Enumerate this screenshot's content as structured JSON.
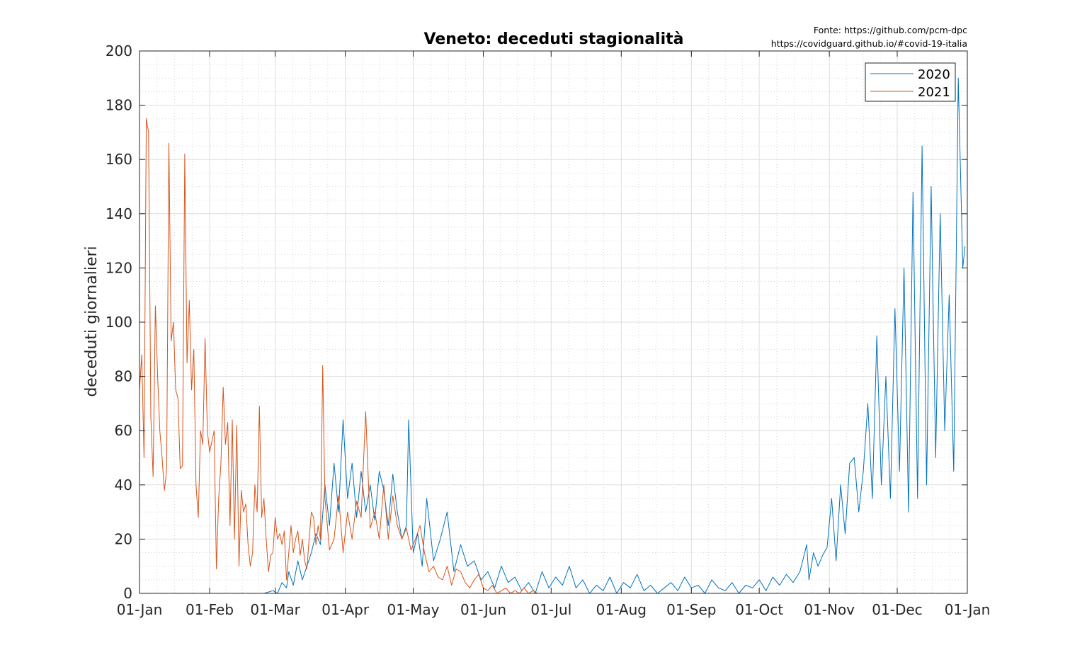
{
  "source": {
    "line1": "Fonte: https://github.com/pcm-dpc",
    "line2": "https://covidguard.github.io/#covid-19-italia"
  },
  "chart_data": {
    "type": "line",
    "title": "Veneto: deceduti stagionalità",
    "xlabel": "",
    "ylabel": "deceduti giornalieri",
    "ylim": [
      0,
      200
    ],
    "xlim_days": [
      0,
      366
    ],
    "grid": true,
    "minor_grid": true,
    "legend_position": "top-right",
    "x_ticks": [
      {
        "day": 0,
        "label": "01-Jan"
      },
      {
        "day": 31,
        "label": "01-Feb"
      },
      {
        "day": 60,
        "label": "01-Mar"
      },
      {
        "day": 91,
        "label": "01-Apr"
      },
      {
        "day": 121,
        "label": "01-May"
      },
      {
        "day": 152,
        "label": "01-Jun"
      },
      {
        "day": 182,
        "label": "01-Jul"
      },
      {
        "day": 213,
        "label": "01-Aug"
      },
      {
        "day": 244,
        "label": "01-Sep"
      },
      {
        "day": 274,
        "label": "01-Oct"
      },
      {
        "day": 305,
        "label": "01-Nov"
      },
      {
        "day": 335,
        "label": "01-Dec"
      },
      {
        "day": 366,
        "label": "01-Jan"
      }
    ],
    "y_ticks": [
      {
        "value": 0,
        "label": "0"
      },
      {
        "value": 20,
        "label": "20"
      },
      {
        "value": 40,
        "label": "40"
      },
      {
        "value": 60,
        "label": "60"
      },
      {
        "value": 80,
        "label": "80"
      },
      {
        "value": 100,
        "label": "100"
      },
      {
        "value": 120,
        "label": "120"
      },
      {
        "value": 140,
        "label": "140"
      },
      {
        "value": 160,
        "label": "160"
      },
      {
        "value": 180,
        "label": "180"
      },
      {
        "value": 200,
        "label": "200"
      }
    ],
    "series": [
      {
        "name": "2020",
        "color": "#0072BD",
        "x": [
          55,
          59,
          61,
          63,
          65,
          66,
          68,
          70,
          72,
          74,
          76,
          78,
          80,
          82,
          84,
          86,
          88,
          90,
          92,
          94,
          96,
          98,
          100,
          102,
          104,
          106,
          108,
          110,
          112,
          114,
          116,
          118,
          119,
          121,
          123,
          125,
          127,
          130,
          133,
          136,
          139,
          142,
          145,
          148,
          151,
          154,
          157,
          160,
          163,
          166,
          169,
          172,
          175,
          178,
          181,
          184,
          187,
          190,
          193,
          196,
          199,
          202,
          205,
          208,
          211,
          214,
          217,
          220,
          223,
          226,
          229,
          232,
          235,
          238,
          241,
          244,
          247,
          250,
          253,
          256,
          259,
          262,
          265,
          268,
          271,
          274,
          277,
          280,
          283,
          286,
          289,
          292,
          295,
          296,
          298,
          300,
          302,
          304,
          306,
          308,
          310,
          312,
          314,
          316,
          318,
          320,
          322,
          324,
          326,
          328,
          330,
          332,
          334,
          336,
          338,
          340,
          342,
          344,
          346,
          348,
          350,
          352,
          354,
          356,
          358,
          360,
          362,
          364,
          365
        ],
        "y": [
          0,
          1,
          0,
          4,
          2,
          8,
          3,
          12,
          5,
          10,
          15,
          22,
          18,
          40,
          25,
          48,
          30,
          64,
          35,
          48,
          28,
          45,
          30,
          40,
          27,
          45,
          38,
          25,
          44,
          30,
          20,
          25,
          64,
          15,
          22,
          10,
          35,
          12,
          20,
          30,
          8,
          18,
          10,
          12,
          5,
          8,
          2,
          10,
          4,
          6,
          1,
          4,
          0,
          8,
          2,
          6,
          3,
          10,
          2,
          5,
          0,
          3,
          1,
          6,
          0,
          4,
          2,
          7,
          1,
          3,
          0,
          2,
          4,
          1,
          6,
          2,
          3,
          0,
          5,
          2,
          1,
          4,
          0,
          3,
          2,
          5,
          1,
          6,
          3,
          7,
          4,
          8,
          18,
          5,
          15,
          10,
          14,
          17,
          35,
          12,
          40,
          22,
          48,
          50,
          30,
          45,
          70,
          35,
          95,
          40,
          80,
          35,
          105,
          45,
          120,
          30,
          148,
          35,
          165,
          40,
          150,
          50,
          140,
          60,
          110,
          45,
          190,
          120,
          128
        ],
        "y_note": "values read off the chart at roughly 2-3 day resolution"
      },
      {
        "name": "2021",
        "color": "#D95319",
        "x": [
          0,
          1,
          2,
          3,
          4,
          5,
          6,
          7,
          8,
          9,
          10,
          11,
          12,
          13,
          14,
          15,
          16,
          17,
          18,
          19,
          20,
          21,
          22,
          23,
          24,
          25,
          26,
          27,
          28,
          29,
          30,
          31,
          32,
          33,
          34,
          35,
          36,
          37,
          38,
          39,
          40,
          41,
          42,
          43,
          44,
          45,
          46,
          47,
          48,
          49,
          50,
          51,
          52,
          53,
          54,
          55,
          56,
          57,
          58,
          59,
          60,
          61,
          62,
          63,
          64,
          65,
          66,
          67,
          68,
          69,
          70,
          71,
          72,
          73,
          74,
          75,
          76,
          77,
          78,
          79,
          80,
          81,
          82,
          84,
          86,
          88,
          90,
          92,
          94,
          96,
          98,
          100,
          102,
          104,
          106,
          108,
          110,
          112,
          114,
          116,
          118,
          120,
          122,
          124,
          126,
          128,
          130,
          132,
          134,
          136,
          138,
          140,
          142,
          144,
          146,
          148,
          150,
          152,
          154,
          156,
          158,
          160,
          162,
          164,
          166,
          168,
          170,
          172,
          174,
          176,
          178,
          180
        ],
        "y": [
          75,
          88,
          50,
          175,
          170,
          65,
          43,
          106,
          80,
          60,
          50,
          38,
          45,
          166,
          93,
          100,
          75,
          72,
          46,
          47,
          162,
          85,
          108,
          75,
          90,
          40,
          28,
          60,
          55,
          94,
          60,
          52,
          56,
          60,
          9,
          35,
          48,
          76,
          55,
          63,
          25,
          64,
          20,
          62,
          10,
          38,
          30,
          33,
          18,
          10,
          15,
          40,
          30,
          69,
          28,
          35,
          20,
          8,
          14,
          15,
          28,
          20,
          22,
          18,
          23,
          5,
          15,
          25,
          15,
          20,
          23,
          14,
          20,
          12,
          9,
          20,
          30,
          28,
          18,
          25,
          20,
          84,
          35,
          16,
          20,
          36,
          15,
          30,
          20,
          34,
          28,
          67,
          24,
          30,
          20,
          40,
          20,
          36,
          25,
          20,
          24,
          16,
          20,
          25,
          15,
          8,
          10,
          6,
          5,
          10,
          3,
          9,
          8,
          4,
          2,
          5,
          7,
          2,
          1,
          3,
          0,
          1,
          2,
          0,
          1,
          0,
          2,
          0,
          1,
          0,
          0,
          0
        ],
        "y_note": "values read off the chart; data ends around early July"
      }
    ]
  }
}
